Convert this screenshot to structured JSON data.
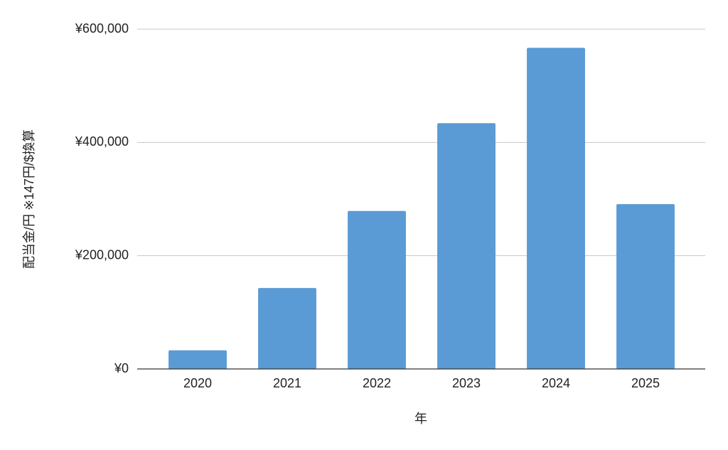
{
  "chart_data": {
    "type": "bar",
    "x_label": "年",
    "y_label": "配当金/円 ※147円/$換算",
    "categories": [
      "2020",
      "2021",
      "2022",
      "2023",
      "2024",
      "2025"
    ],
    "values": [
      33000,
      143000,
      279000,
      434000,
      567000,
      291000
    ],
    "color": "#5b9bd5",
    "ylim": [
      0,
      600000
    ],
    "yticks": [
      {
        "value": 0,
        "label": "¥0"
      },
      {
        "value": 200000,
        "label": "¥200,000"
      },
      {
        "value": 400000,
        "label": "¥400,000"
      },
      {
        "value": 600000,
        "label": "¥600,000"
      }
    ],
    "grid": true
  }
}
